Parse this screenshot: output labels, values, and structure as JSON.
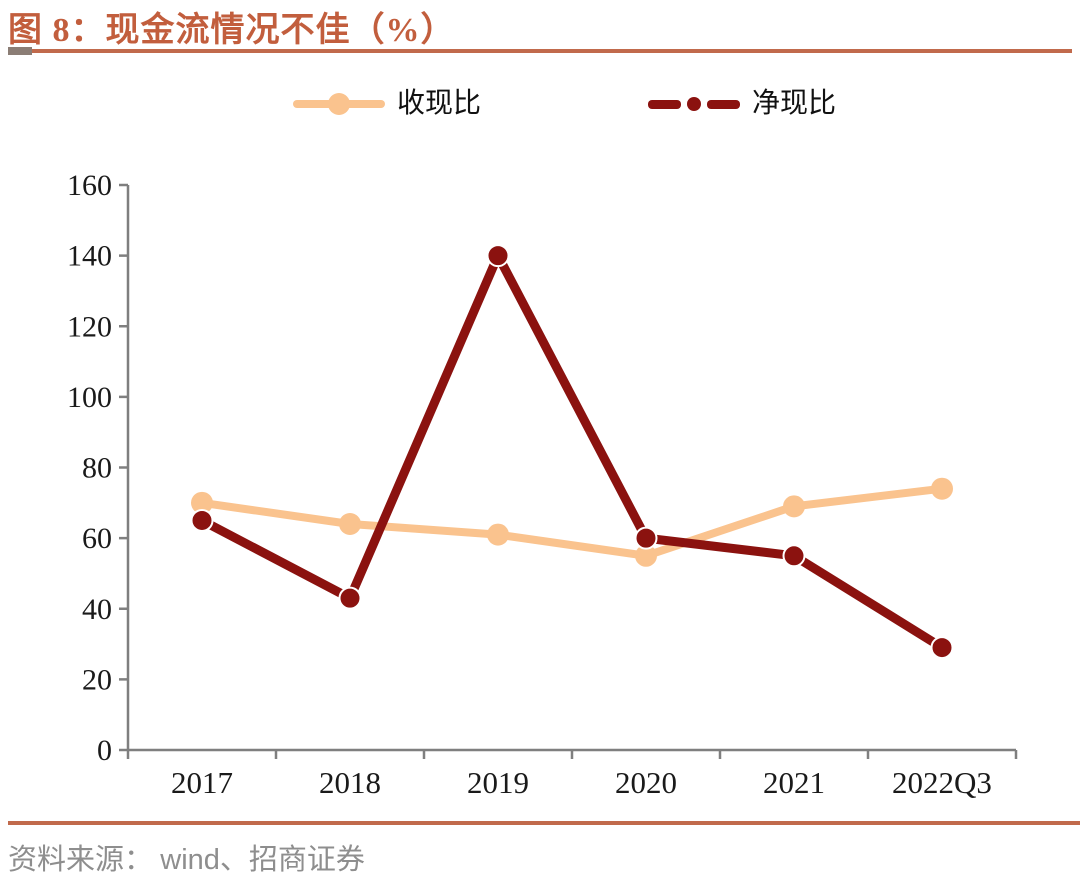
{
  "figure": {
    "title": "图 8：现金流情况不佳（%）",
    "source_prefix": "资料来源：",
    "source_text": "wind、招商证券"
  },
  "colors": {
    "title_accent": "#C25E3D",
    "rule": "#C16A4C",
    "rule_left_block": "#8B7D75",
    "axis": "#7F7F7F",
    "tick_text": "#1a1a1a",
    "source_text": "#8E8E8E",
    "series_shouxianbi": "#FAC38E",
    "series_jingxianbi": "#8B120F"
  },
  "chart_data": {
    "type": "line",
    "title": "现金流情况不佳（%）",
    "categories": [
      "2017",
      "2018",
      "2019",
      "2020",
      "2021",
      "2022Q3"
    ],
    "series": [
      {
        "name": "收现比",
        "color": "#FAC38E",
        "values": [
          70,
          64,
          61,
          55,
          69,
          74
        ]
      },
      {
        "name": "净现比",
        "color": "#8B120F",
        "values": [
          65,
          43,
          140,
          60,
          55,
          29
        ]
      }
    ],
    "xlabel": "",
    "ylabel": "",
    "ylim": [
      0,
      160
    ],
    "yticks": [
      0,
      20,
      40,
      60,
      80,
      100,
      120,
      140,
      160
    ],
    "grid": false,
    "legend_position": "top"
  }
}
